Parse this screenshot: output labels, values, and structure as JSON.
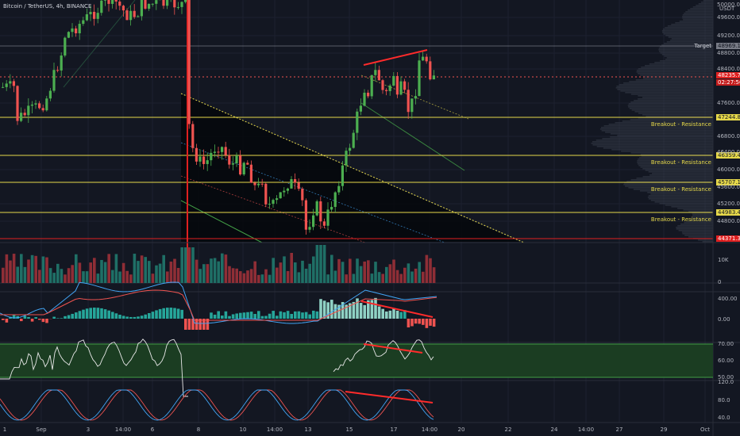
{
  "header": {
    "symbol_title": "Bitcoin / TetherUS, 4h, BINANCE"
  },
  "colors": {
    "background": "#131722",
    "up_candle": "#26a69a",
    "up_candle_bright": "#4caf50",
    "down_candle": "#ef5350",
    "resistance_line": "#e6d84a",
    "support_red": "#e02020",
    "channel_fill": "#05070b",
    "rsi_band": "#1b3d22"
  },
  "price_axis": {
    "unit": "USDT",
    "ticks": [
      "50000.00",
      "49600.00",
      "49200.00",
      "48800.00",
      "48400.00",
      "47600.00",
      "46800.00",
      "46400.00",
      "46000.00",
      "45600.00",
      "45200.00",
      "44800.00"
    ],
    "current_price": "48235.75",
    "countdown": "02:27:56"
  },
  "levels": [
    {
      "label": "Target",
      "value": "48969.18"
    },
    {
      "label": "Breakout - Resistance",
      "value": "47244.87"
    },
    {
      "label": "Breakout - Resistance",
      "value": "46359.47"
    },
    {
      "label": "Breakout - Resistance",
      "value": "45707.12"
    },
    {
      "label": "Breakout - Resistance",
      "value": "44983.40"
    },
    {
      "label": "",
      "value": "44371.37"
    }
  ],
  "volume_axis": {
    "ticks": [
      "10K",
      "0"
    ]
  },
  "macd_axis": {
    "ticks": [
      "400.00",
      "0.00"
    ]
  },
  "rsi_axis": {
    "ticks": [
      "70.00",
      "60.00",
      "50.00"
    ]
  },
  "stoch_axis": {
    "ticks": [
      "120.0",
      "80.0",
      "40.0"
    ]
  },
  "time_axis": {
    "ticks": [
      "1",
      "Sep",
      "3",
      "14:00",
      "6",
      "8",
      "10",
      "14:00",
      "13",
      "15",
      "17",
      "14:00",
      "20",
      "22",
      "24",
      "14:00",
      "27",
      "29",
      "Oct"
    ]
  },
  "chart_data": {
    "type": "candlestick",
    "title": "Bitcoin / TetherUS, 4h, BINANCE",
    "price_range": [
      44371.37,
      50000
    ],
    "horizontal_levels": [
      48969.18,
      47244.87,
      46359.47,
      45707.12,
      44983.4,
      44371.37
    ],
    "last_price": 48235.75
  }
}
